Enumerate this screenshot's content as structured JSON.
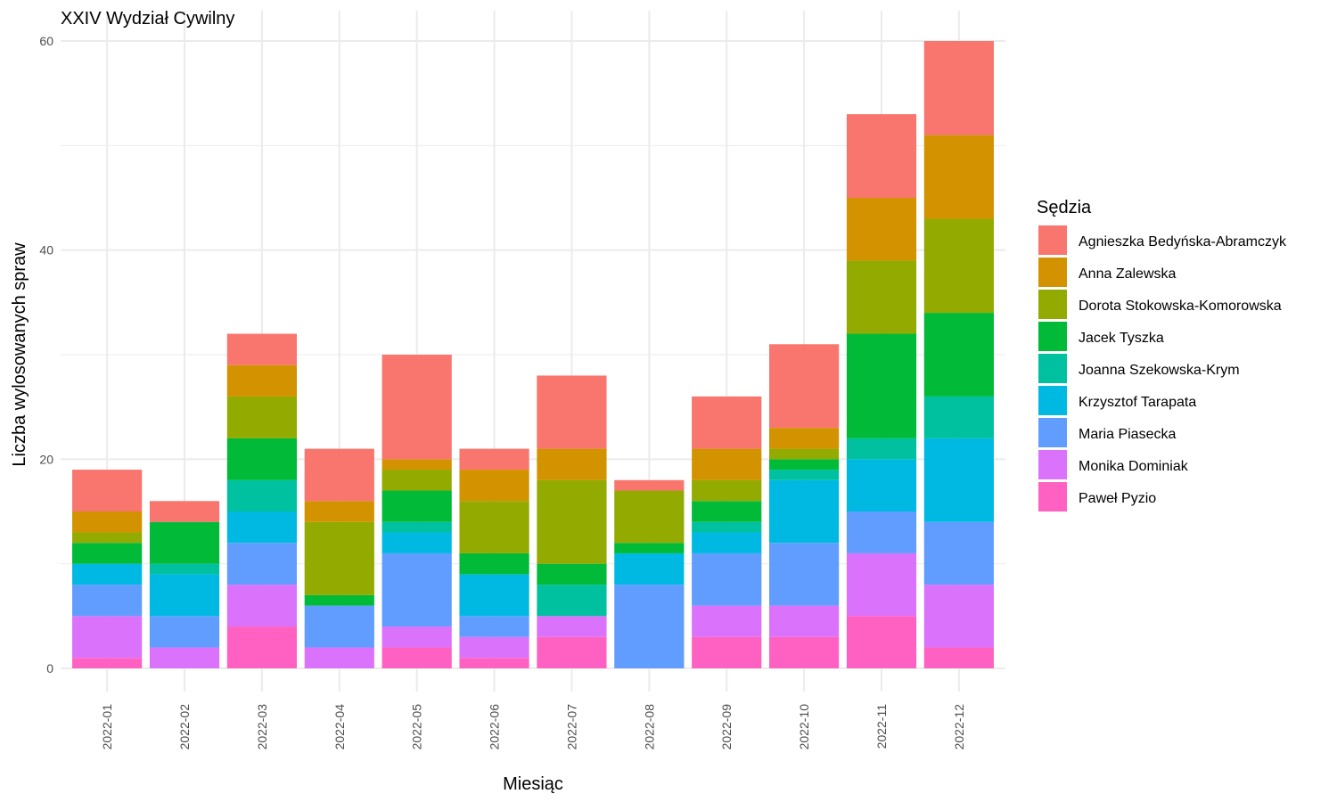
{
  "chart_data": {
    "type": "bar",
    "stacked": true,
    "title": "XXIV Wydział Cywilny",
    "xlabel": "Miesiąc",
    "ylabel": "Liczba wylosowanych spraw",
    "ylim": [
      0,
      60
    ],
    "yticks": [
      0,
      20,
      40,
      60
    ],
    "grid": true,
    "legend_title": "Sędzia",
    "legend_position": "right",
    "categories": [
      "2022-01",
      "2022-02",
      "2022-03",
      "2022-04",
      "2022-05",
      "2022-06",
      "2022-07",
      "2022-08",
      "2022-09",
      "2022-10",
      "2022-11",
      "2022-12"
    ],
    "series": [
      {
        "name": "Agnieszka Bedyńska-Abramczyk",
        "color": "#F8766D",
        "values": [
          4,
          2,
          3,
          5,
          10,
          2,
          7,
          1,
          5,
          8,
          8,
          9
        ]
      },
      {
        "name": "Anna Zalewska",
        "color": "#D39200",
        "values": [
          2,
          0,
          3,
          2,
          1,
          3,
          3,
          0,
          3,
          2,
          6,
          8
        ]
      },
      {
        "name": "Dorota Stokowska-Komorowska",
        "color": "#93AA00",
        "values": [
          1,
          0,
          4,
          7,
          2,
          5,
          8,
          5,
          2,
          1,
          7,
          9
        ]
      },
      {
        "name": "Jacek Tyszka",
        "color": "#00BA38",
        "values": [
          2,
          4,
          4,
          1,
          3,
          2,
          2,
          1,
          2,
          1,
          10,
          8
        ]
      },
      {
        "name": "Joanna Szekowska-Krym",
        "color": "#00C19F",
        "values": [
          0,
          1,
          3,
          0,
          1,
          0,
          3,
          0,
          1,
          1,
          2,
          4
        ]
      },
      {
        "name": "Krzysztof Tarapata",
        "color": "#00B9E3",
        "values": [
          2,
          4,
          3,
          0,
          2,
          4,
          0,
          3,
          2,
          6,
          5,
          8
        ]
      },
      {
        "name": "Maria Piasecka",
        "color": "#619CFF",
        "values": [
          3,
          3,
          4,
          4,
          7,
          2,
          0,
          8,
          5,
          6,
          4,
          6
        ]
      },
      {
        "name": "Monika Dominiak",
        "color": "#DB72FB",
        "values": [
          4,
          2,
          4,
          2,
          2,
          2,
          2,
          0,
          3,
          3,
          6,
          6
        ]
      },
      {
        "name": "Paweł Pyzio",
        "color": "#FF61C3",
        "values": [
          1,
          0,
          4,
          0,
          2,
          1,
          3,
          0,
          3,
          3,
          5,
          2
        ]
      }
    ]
  }
}
